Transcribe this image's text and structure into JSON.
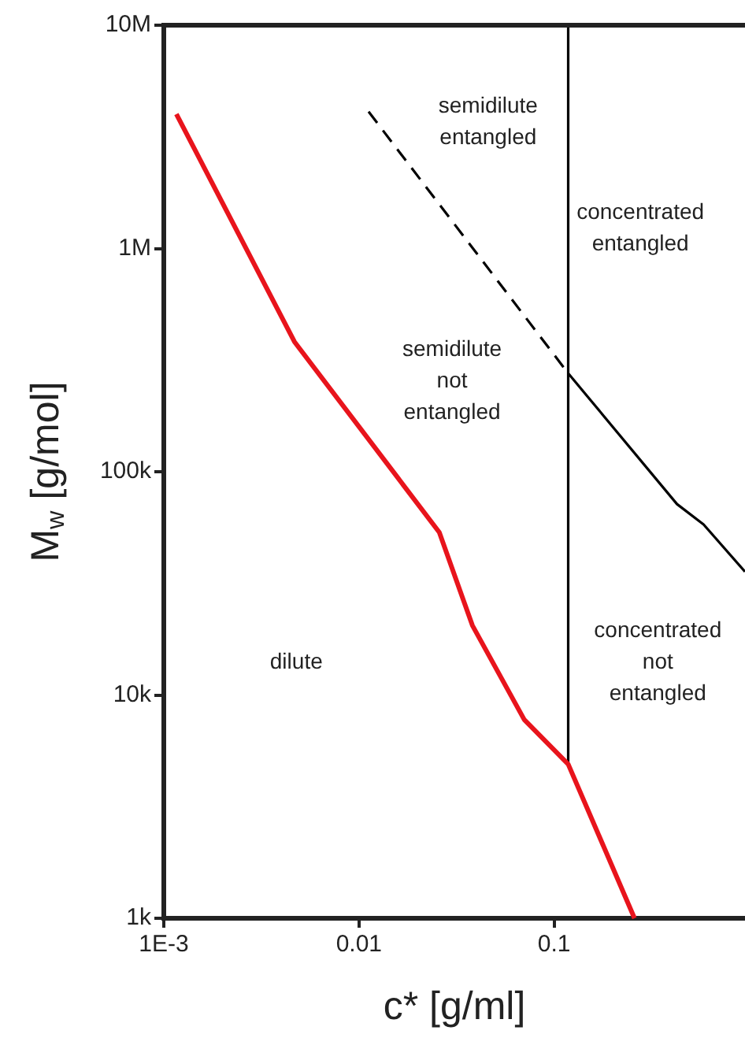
{
  "chart_data": {
    "type": "line",
    "xlabel": "c* [g/ml]",
    "ylabel": "M$_{w}$ [g/mol]",
    "log": "xy",
    "grid": false,
    "legend": false,
    "marker": "none",
    "xlim": [
      0.001,
      0.95
    ],
    "ylim": [
      1000,
      10000000
    ],
    "xticks": [
      {
        "value": 0.001,
        "label": "1E-3"
      },
      0.01,
      0.1
    ],
    "yticks": [
      {
        "value": 1000,
        "label": "1k"
      },
      {
        "value": 10000,
        "label": "10k"
      },
      {
        "value": 100000,
        "label": "100k"
      },
      {
        "value": 1000000,
        "label": "1M"
      },
      {
        "value": 10000000,
        "label": "10M"
      }
    ],
    "series": [
      {
        "color": "#e8141c",
        "line_style": "solid",
        "x": [
          0.00116,
          0.00467,
          0.0258,
          0.0381,
          0.0703,
          0.118,
          0.258
        ],
        "values": [
          4000000,
          382000,
          53500,
          20500,
          7750,
          4900,
          1000
        ]
      },
      {
        "color": "#000000",
        "line_style": "dashed",
        "x": [
          0.0112,
          0.118
        ],
        "values": [
          4100000,
          276000
        ]
      },
      {
        "color": "#000000",
        "line_style": "solid",
        "x": [
          0.118,
          0.426,
          0.583,
          0.95
        ],
        "values": [
          276000,
          71600,
          58000,
          35700
        ]
      },
      {
        "color": "#000000",
        "line_style": "solid",
        "x": [
          0.118,
          0.118
        ],
        "values": [
          10000000,
          4900
        ]
      }
    ],
    "annotations": [
      "semidilute\nentangled",
      "concentrated\nentangled",
      "semidilute\nnot\nentangled",
      "dilute",
      "concentrated\nnot\nentangled"
    ]
  }
}
